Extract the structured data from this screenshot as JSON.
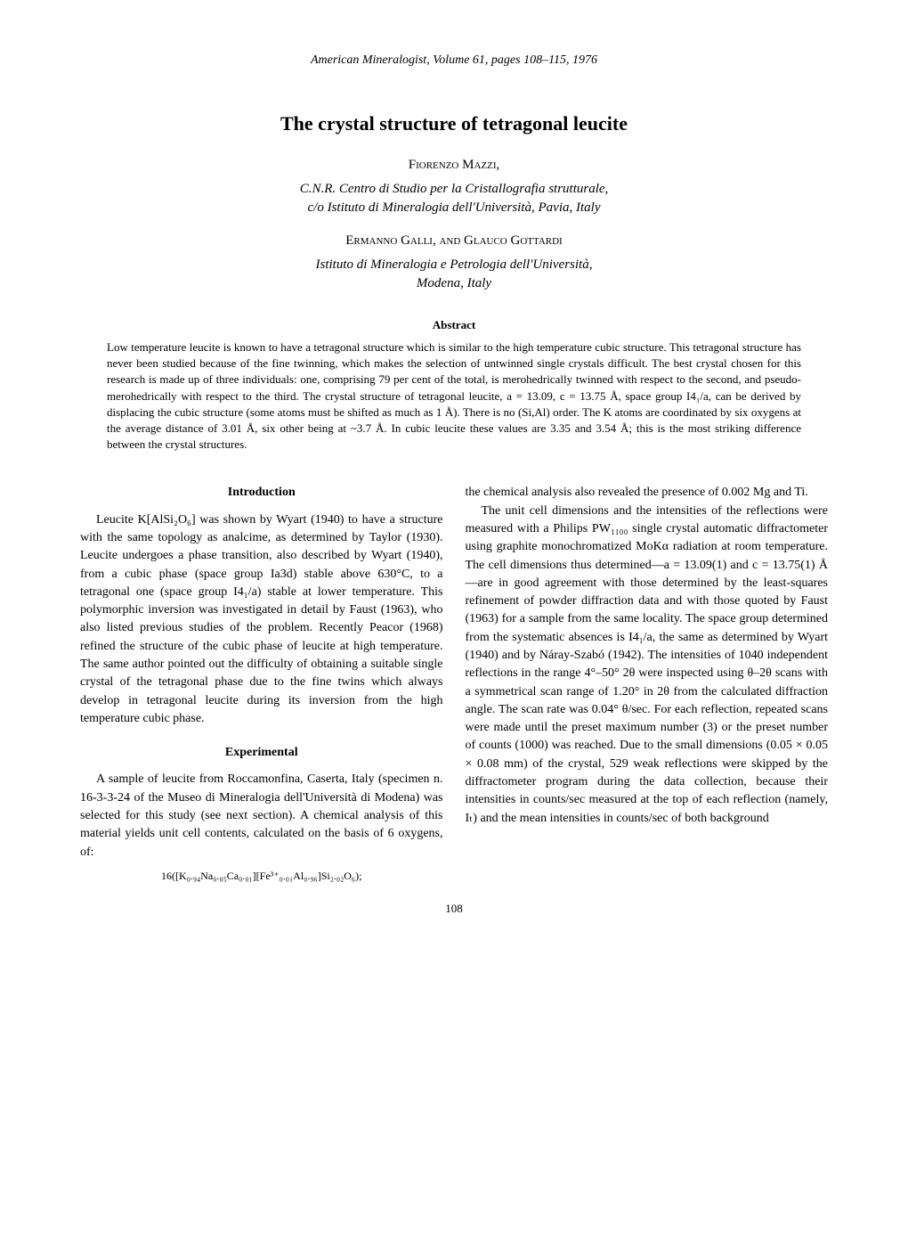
{
  "journal_header": "American Mineralogist, Volume 61, pages 108–115, 1976",
  "title": "The crystal structure of tetragonal leucite",
  "author_primary": "Fiorenzo Mazzi,",
  "affiliation1_line1": "C.N.R. Centro di Studio per la Cristallografia strutturale,",
  "affiliation1_line2": "c/o Istituto di Mineralogia dell'Università, Pavia, Italy",
  "authors_secondary": "Ermanno Galli, and Glauco Gottardi",
  "affiliation2_line1": "Istituto di Mineralogia e Petrologia dell'Università,",
  "affiliation2_line2": "Modena, Italy",
  "abstract_heading": "Abstract",
  "abstract_text": "Low temperature leucite is known to have a tetragonal structure which is similar to the high temperature cubic structure. This tetragonal structure has never been studied because of the fine twinning, which makes the selection of untwinned single crystals difficult. The best crystal chosen for this research is made up of three individuals: one, comprising 79 per cent of the total, is merohedrically twinned with respect to the second, and pseudo-merohedrically with respect to the third. The crystal structure of tetragonal leucite, a = 13.09, c = 13.75 Å, space group I4₁/a, can be derived by displacing the cubic structure (some atoms must be shifted as much as 1 Å). There is no (Si,Al) order. The K atoms are coordinated by six oxygens at the average distance of 3.01 Å, six other being at ~3.7 Å. In cubic leucite these values are 3.35 and 3.54 Å; this is the most striking difference between the crystal structures.",
  "intro_heading": "Introduction",
  "intro_para": "Leucite K[AlSi₂O₆] was shown by Wyart (1940) to have a structure with the same topology as analcime, as determined by Taylor (1930). Leucite undergoes a phase transition, also described by Wyart (1940), from a cubic phase (space group Ia3d) stable above 630°C, to a tetragonal one (space group I4₁/a) stable at lower temperature. This polymorphic inversion was investigated in detail by Faust (1963), who also listed previous studies of the problem. Recently Peacor (1968) refined the structure of the cubic phase of leucite at high temperature. The same author pointed out the difficulty of obtaining a suitable single crystal of the tetragonal phase due to the fine twins which always develop in tetragonal leucite during its inversion from the high temperature cubic phase.",
  "exp_heading": "Experimental",
  "exp_para": "A sample of leucite from Roccamonfina, Caserta, Italy (specimen n. 16-3-3-24 of the Museo di Mineralogia dell'Università di Modena) was selected for this study (see next section). A chemical analysis of this material yields unit cell contents, calculated on the basis of 6 oxygens, of:",
  "formula": "16([K₀.₉₄Na₀.₀₅Ca₀.₀₁][Fe³⁺₀.₀₁Al₀.₉₆]Si₂.₀₂O₆);",
  "col2_para1": "the chemical analysis also revealed the presence of 0.002 Mg and Ti.",
  "col2_para2": "The unit cell dimensions and the intensities of the reflections were measured with a Philips PW₁₁₀₀ single crystal automatic diffractometer using graphite monochromatized MoKα radiation at room temperature. The cell dimensions thus determined—a = 13.09(1) and c = 13.75(1) Å—are in good agreement with those determined by the least-squares refinement of powder diffraction data and with those quoted by Faust (1963) for a sample from the same locality. The space group determined from the systematic absences is I4₁/a, the same as determined by Wyart (1940) and by Náray-Szabó (1942). The intensities of 1040 independent reflections in the range 4°–50° 2θ were inspected using θ–2θ scans with a symmetrical scan range of 1.20° in 2θ from the calculated diffraction angle. The scan rate was 0.04° θ/sec. For each reflection, repeated scans were made until the preset maximum number (3) or the preset number of counts (1000) was reached. Due to the small dimensions (0.05 × 0.05 × 0.08 mm) of the crystal, 529 weak reflections were skipped by the diffractometer program during the data collection, because their intensities in counts/sec measured at the top of each reflection (namely, Iₜ) and the mean intensities in counts/sec of both background",
  "page_number": "108"
}
